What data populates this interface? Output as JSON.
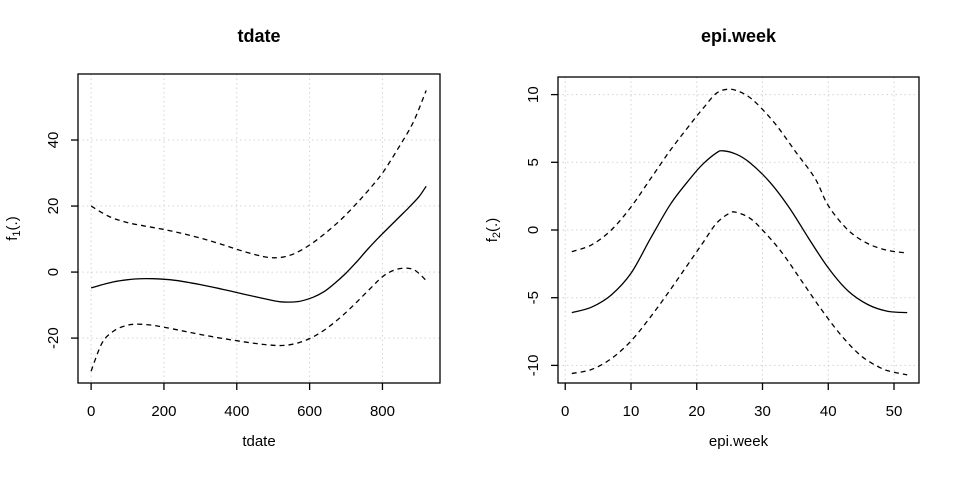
{
  "device": {
    "background": "#ffffff",
    "foreground": "#000000"
  },
  "chart_data": [
    {
      "type": "line",
      "title": "tdate",
      "xlabel": "tdate",
      "ylabel": {
        "base": "f",
        "sub": "1",
        "suffix": "(.)"
      },
      "xlim": [
        -36,
        958
      ],
      "ylim": [
        -33.6,
        60
      ],
      "xticks": [
        0,
        200,
        400,
        600,
        800
      ],
      "yticks": [
        -20,
        0,
        20,
        40
      ],
      "grid": true,
      "legend": "none",
      "colors": {
        "line": "#000000",
        "grid": "#d3d3d3",
        "box": "#000000"
      },
      "series": [
        {
          "name": "estimate",
          "style": "solid",
          "points": [
            [
              0,
              -4.8
            ],
            [
              60,
              -3.0
            ],
            [
              120,
              -2.1
            ],
            [
              170,
              -2.0
            ],
            [
              230,
              -2.5
            ],
            [
              300,
              -3.8
            ],
            [
              360,
              -5.2
            ],
            [
              420,
              -6.7
            ],
            [
              470,
              -7.9
            ],
            [
              520,
              -9.0
            ],
            [
              570,
              -8.9
            ],
            [
              610,
              -7.6
            ],
            [
              640,
              -5.9
            ],
            [
              670,
              -3.3
            ],
            [
              700,
              -0.3
            ],
            [
              730,
              3.2
            ],
            [
              760,
              7.0
            ],
            [
              790,
              10.5
            ],
            [
              830,
              14.9
            ],
            [
              870,
              19.3
            ],
            [
              900,
              22.8
            ],
            [
              920,
              26.0
            ]
          ]
        },
        {
          "name": "upper-ci",
          "style": "dashed",
          "points": [
            [
              0,
              20.0
            ],
            [
              50,
              16.8
            ],
            [
              100,
              15.0
            ],
            [
              150,
              13.9
            ],
            [
              200,
              12.9
            ],
            [
              250,
              11.7
            ],
            [
              300,
              10.3
            ],
            [
              350,
              8.7
            ],
            [
              400,
              6.9
            ],
            [
              450,
              5.3
            ],
            [
              490,
              4.4
            ],
            [
              525,
              4.5
            ],
            [
              560,
              5.7
            ],
            [
              600,
              8.2
            ],
            [
              640,
              11.5
            ],
            [
              680,
              15.3
            ],
            [
              720,
              19.7
            ],
            [
              760,
              24.6
            ],
            [
              800,
              30.0
            ],
            [
              845,
              37.8
            ],
            [
              885,
              45.5
            ],
            [
              920,
              55.0
            ]
          ]
        },
        {
          "name": "lower-ci",
          "style": "dashed",
          "points": [
            [
              0,
              -30.0
            ],
            [
              30,
              -21.5
            ],
            [
              60,
              -18.0
            ],
            [
              90,
              -16.4
            ],
            [
              120,
              -15.8
            ],
            [
              160,
              -16.0
            ],
            [
              200,
              -16.7
            ],
            [
              250,
              -17.8
            ],
            [
              300,
              -18.9
            ],
            [
              350,
              -19.9
            ],
            [
              400,
              -20.8
            ],
            [
              450,
              -21.6
            ],
            [
              490,
              -22.1
            ],
            [
              530,
              -22.2
            ],
            [
              570,
              -21.4
            ],
            [
              610,
              -19.6
            ],
            [
              650,
              -16.8
            ],
            [
              690,
              -13.2
            ],
            [
              730,
              -9.0
            ],
            [
              770,
              -4.6
            ],
            [
              800,
              -1.4
            ],
            [
              830,
              0.5
            ],
            [
              860,
              1.2
            ],
            [
              885,
              0.8
            ],
            [
              905,
              -0.9
            ],
            [
              920,
              -2.6
            ]
          ]
        }
      ]
    },
    {
      "type": "line",
      "title": "epi.week",
      "xlabel": "epi.week",
      "ylabel": {
        "base": "f",
        "sub": "2",
        "suffix": "(.)"
      },
      "xlim": [
        -1.1,
        53.8
      ],
      "ylim": [
        -11.3,
        11.3
      ],
      "xticks": [
        0,
        10,
        20,
        30,
        40,
        50
      ],
      "yticks": [
        -10,
        -5,
        0,
        5,
        10
      ],
      "grid": true,
      "legend": "none",
      "colors": {
        "line": "#000000",
        "grid": "#d3d3d3",
        "box": "#000000"
      },
      "series": [
        {
          "name": "estimate",
          "style": "solid",
          "points": [
            [
              1,
              -6.1
            ],
            [
              4,
              -5.7
            ],
            [
              7,
              -4.8
            ],
            [
              10,
              -3.2
            ],
            [
              13,
              -0.6
            ],
            [
              16,
              1.9
            ],
            [
              19,
              3.8
            ],
            [
              21,
              4.9
            ],
            [
              23,
              5.7
            ],
            [
              24,
              5.85
            ],
            [
              26,
              5.6
            ],
            [
              28,
              5.0
            ],
            [
              31,
              3.6
            ],
            [
              34,
              1.7
            ],
            [
              37,
              -0.6
            ],
            [
              40,
              -2.8
            ],
            [
              43,
              -4.5
            ],
            [
              46,
              -5.5
            ],
            [
              49,
              -6.0
            ],
            [
              52,
              -6.1
            ]
          ]
        },
        {
          "name": "upper-ci",
          "style": "dashed",
          "points": [
            [
              1,
              -1.6
            ],
            [
              4,
              -1.1
            ],
            [
              7,
              0.0
            ],
            [
              10,
              1.7
            ],
            [
              13,
              3.8
            ],
            [
              16,
              5.9
            ],
            [
              19,
              7.8
            ],
            [
              21,
              9.0
            ],
            [
              23,
              10.1
            ],
            [
              25,
              10.4
            ],
            [
              27,
              10.1
            ],
            [
              29,
              9.4
            ],
            [
              32,
              7.8
            ],
            [
              35,
              5.8
            ],
            [
              38,
              3.8
            ],
            [
              40,
              1.8
            ],
            [
              43,
              0.0
            ],
            [
              46,
              -1.0
            ],
            [
              49,
              -1.5
            ],
            [
              52,
              -1.7
            ]
          ]
        },
        {
          "name": "lower-ci",
          "style": "dashed",
          "points": [
            [
              1,
              -10.6
            ],
            [
              4,
              -10.3
            ],
            [
              7,
              -9.5
            ],
            [
              10,
              -8.2
            ],
            [
              13,
              -6.4
            ],
            [
              16,
              -4.4
            ],
            [
              19,
              -2.3
            ],
            [
              21,
              -0.9
            ],
            [
              23,
              0.5
            ],
            [
              25,
              1.25
            ],
            [
              26,
              1.3
            ],
            [
              28,
              0.9
            ],
            [
              30,
              0.0
            ],
            [
              33,
              -1.7
            ],
            [
              36,
              -3.8
            ],
            [
              39,
              -5.9
            ],
            [
              42,
              -7.8
            ],
            [
              45,
              -9.3
            ],
            [
              48,
              -10.2
            ],
            [
              50,
              -10.5
            ],
            [
              52,
              -10.7
            ]
          ]
        }
      ]
    }
  ]
}
